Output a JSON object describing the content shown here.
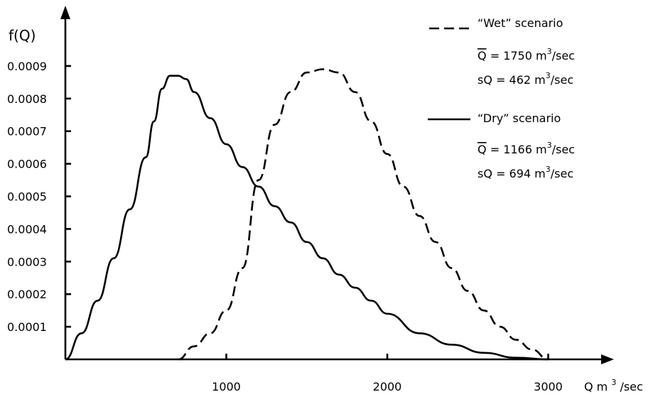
{
  "chart_data": {
    "type": "line",
    "title": "",
    "ylabel": "f(Q)",
    "xlabel": "Q m³/sec",
    "xlabel_parts": {
      "main": "Q m",
      "sup": "3",
      "suffix": "/sec"
    },
    "xlim": [
      0,
      3200
    ],
    "ylim": [
      0,
      0.00105
    ],
    "x_ticks": [
      1000,
      2000,
      3000
    ],
    "x_tick_labels": [
      "1000",
      "2000",
      "3000"
    ],
    "y_ticks": [
      0.0001,
      0.0002,
      0.0003,
      0.0004,
      0.0005,
      0.0006,
      0.0007,
      0.0008,
      0.0009
    ],
    "y_tick_labels": [
      "0.0001",
      "0.0002",
      "0.0003",
      "0.0004",
      "0.0005",
      "0.0006",
      "0.0007",
      "0.0008",
      "0.0009"
    ],
    "grid": false,
    "legend_position": "top-right",
    "series": [
      {
        "name": "“Wet” scenario",
        "style": "dashed",
        "mean_text": "Q̅ = 1750 m³/sec",
        "mean_label": "Q",
        "mean_value": "1750",
        "sd_label": "sQ",
        "sd_value": "462",
        "unit_main": "m",
        "unit_sup": "3",
        "unit_suffix": "/sec",
        "x": [
          700,
          800,
          900,
          1000,
          1100,
          1200,
          1300,
          1400,
          1500,
          1600,
          1700,
          1800,
          1900,
          2000,
          2100,
          2200,
          2300,
          2400,
          2500,
          2600,
          2700,
          2800,
          2900,
          3000
        ],
        "y": [
          0.0,
          4e-05,
          8e-05,
          0.00015,
          0.00028,
          0.00055,
          0.00072,
          0.00082,
          0.00088,
          0.00089,
          0.00088,
          0.00082,
          0.00073,
          0.00063,
          0.00053,
          0.00044,
          0.00036,
          0.00028,
          0.00021,
          0.00015,
          0.0001,
          6e-05,
          3e-05,
          0.0
        ]
      },
      {
        "name": "“Dry” scenario",
        "style": "solid",
        "mean_text": "Q̅ = 1166 m³/sec",
        "mean_label": "Q",
        "mean_value": "1166",
        "sd_label": "sQ",
        "sd_value": "694",
        "unit_main": "m",
        "unit_sup": "3",
        "unit_suffix": "/sec",
        "x": [
          0,
          100,
          200,
          300,
          400,
          500,
          550,
          600,
          650,
          700,
          750,
          800,
          900,
          1000,
          1100,
          1200,
          1300,
          1400,
          1500,
          1600,
          1700,
          1800,
          1900,
          2000,
          2200,
          2400,
          2600,
          2800,
          3000
        ],
        "y": [
          0.0,
          8e-05,
          0.00018,
          0.00031,
          0.00046,
          0.00062,
          0.00073,
          0.00083,
          0.00087,
          0.00087,
          0.00086,
          0.00082,
          0.00074,
          0.00066,
          0.00059,
          0.00053,
          0.00047,
          0.00042,
          0.00036,
          0.00031,
          0.00026,
          0.00022,
          0.00018,
          0.00014,
          8e-05,
          4.5e-05,
          2e-05,
          5e-06,
          0.0
        ]
      }
    ]
  }
}
